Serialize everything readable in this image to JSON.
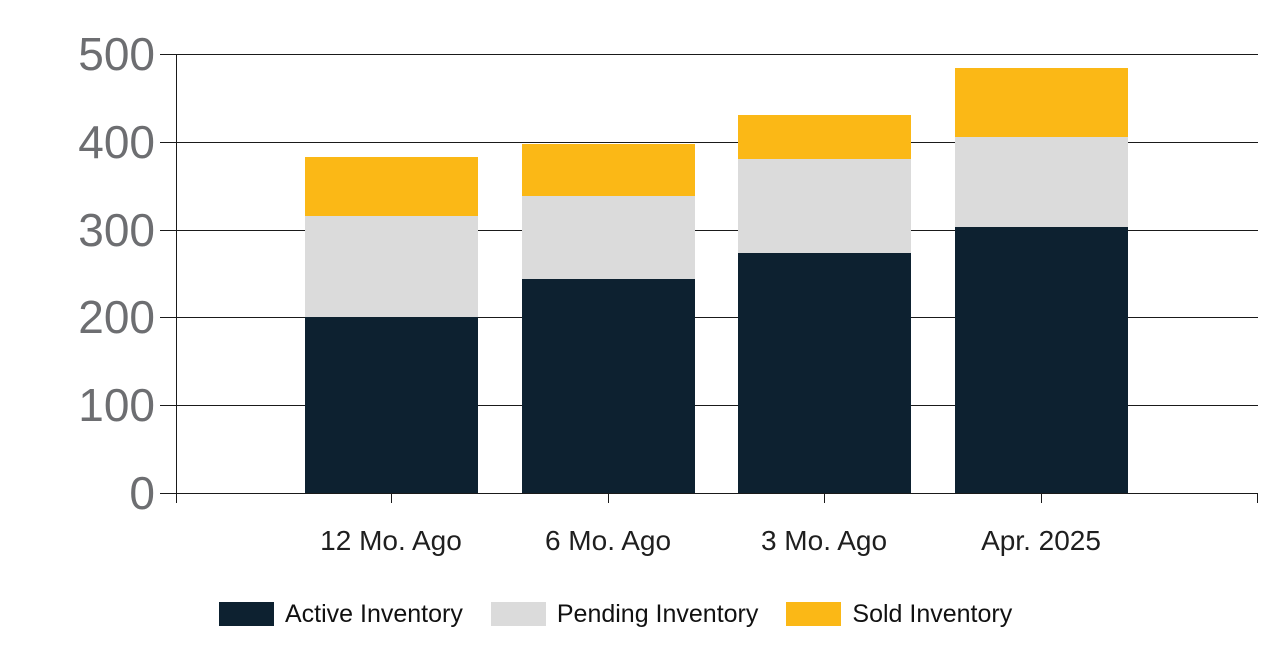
{
  "chart_data": {
    "type": "bar",
    "stacked": true,
    "title": "",
    "xlabel": "",
    "ylabel": "",
    "categories": [
      "12 Mo. Ago",
      "6 Mo. Ago",
      "3 Mo. Ago",
      "Apr. 2025"
    ],
    "series": [
      {
        "name": "Active Inventory",
        "color": "#0d2130",
        "values": [
          200,
          244,
          273,
          303
        ]
      },
      {
        "name": "Pending Inventory",
        "color": "#dbdbdb",
        "values": [
          115,
          94,
          107,
          103
        ]
      },
      {
        "name": "Sold Inventory",
        "color": "#fbb816",
        "values": [
          68,
          59,
          50,
          78
        ]
      }
    ],
    "stack_totals": [
      383,
      397,
      430,
      484
    ],
    "ylim": [
      0,
      500
    ],
    "yticks": [
      0,
      100,
      200,
      300,
      400,
      500
    ],
    "grid": true,
    "legend_position": "bottom"
  },
  "colors": {
    "background": "#ffffff",
    "gridline": "#1a1a1a",
    "axis_line": "#1a1a1a",
    "y_tick_label": "#6d6e71",
    "x_tick_label": "#1f1f1f",
    "legend_label": "#111111"
  }
}
